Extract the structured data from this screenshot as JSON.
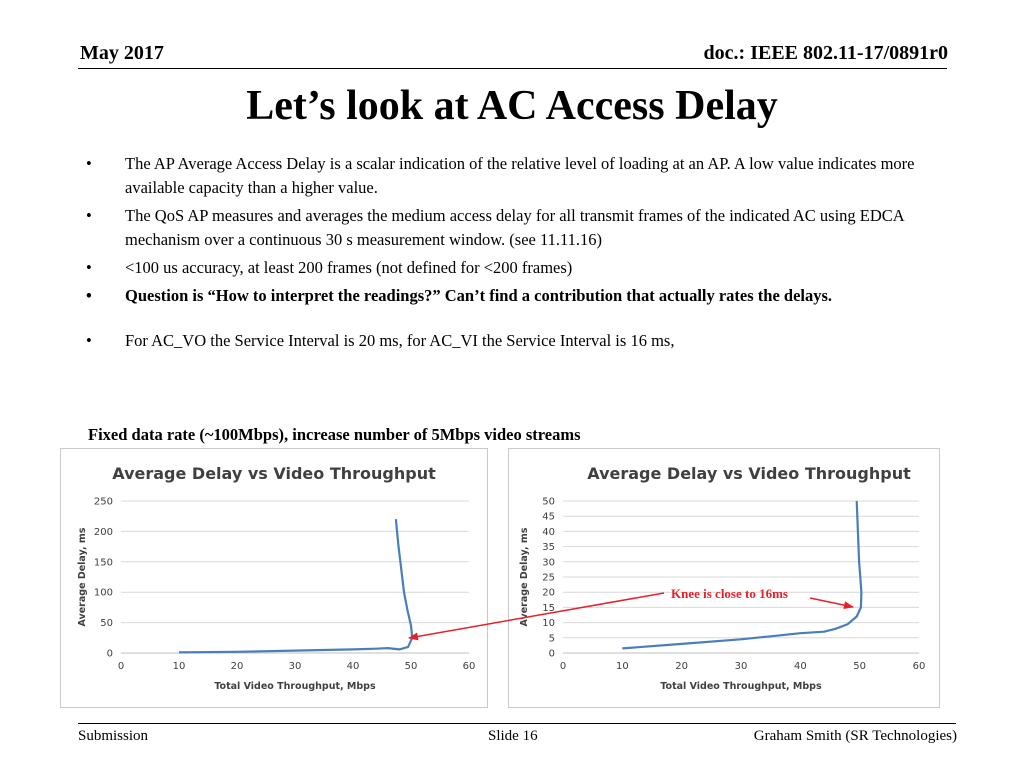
{
  "header": {
    "date": "May 2017",
    "doc": "doc.: IEEE 802.11-17/0891r0"
  },
  "title": "Let’s look at AC Access Delay",
  "bullets": [
    "The AP Average Access Delay is a scalar indication of the relative level of loading at an AP. A low value indicates more available capacity than a higher value.",
    "The QoS AP measures and averages the medium access delay for all transmit frames of the indicated AC using EDCA mechanism over a continuous 30 s measurement window. (see 11.11.16)",
    "<100 us accuracy, at least 200 frames (not defined for <200 frames)",
    "Question is “How to interpret the readings?”  Can’t find a contribution that actually rates the delays.",
    "For AC_VO the Service Interval is 20 ms, for AC_VI the Service Interval is 16 ms,"
  ],
  "fixed_rate_label": "Fixed data rate (~100Mbps), increase number of 5Mbps video streams",
  "annotation": {
    "text": "Knee is close to 16ms",
    "color": "#e8202a"
  },
  "footer": {
    "left": "Submission",
    "center": "Slide 16",
    "right": "Graham Smith (SR Technologies)"
  },
  "colors": {
    "series": "#4a7ebb",
    "grid": "#d9d9d9",
    "axis_text": "#404040"
  },
  "chart_data": [
    {
      "type": "line",
      "title": "Average Delay vs Video Throughput",
      "xlabel": "Total Video Throughput, Mbps",
      "ylabel": "Average Delay, ms",
      "xlim": [
        0,
        60
      ],
      "ylim": [
        0,
        250
      ],
      "xticks": [
        "0",
        "10",
        "20",
        "30",
        "40",
        "50",
        "60"
      ],
      "yticks": [
        "0",
        "50",
        "100",
        "150",
        "200",
        "250"
      ],
      "grid": true,
      "series": [
        {
          "x": [
            10,
            20,
            30,
            40,
            44,
            46,
            48,
            49.5,
            50.2,
            50,
            49.4,
            48.8,
            48.3,
            47.8,
            47.4
          ],
          "y": [
            1,
            2,
            4,
            6,
            7,
            8,
            6,
            10,
            25,
            45,
            70,
            100,
            140,
            180,
            220
          ]
        }
      ]
    },
    {
      "type": "line",
      "title": "Average Delay vs Video Throughput",
      "xlabel": "Total Video Throughput, Mbps",
      "ylabel": "Average Delay, ms",
      "xlim": [
        0,
        60
      ],
      "ylim": [
        0,
        50
      ],
      "xticks": [
        "0",
        "10",
        "20",
        "30",
        "40",
        "50",
        "60"
      ],
      "yticks": [
        "0",
        "5",
        "10",
        "15",
        "20",
        "25",
        "30",
        "35",
        "40",
        "45",
        "50"
      ],
      "grid": true,
      "series": [
        {
          "x": [
            10,
            20,
            30,
            35,
            40,
            44,
            46,
            48,
            49.5,
            50.2,
            50.3,
            50.1,
            49.9,
            49.7,
            49.6,
            49.5
          ],
          "y": [
            1.5,
            3,
            4.5,
            5.5,
            6.5,
            7,
            8,
            9.5,
            12,
            15,
            20,
            25,
            30,
            40,
            45,
            50
          ]
        }
      ]
    }
  ]
}
